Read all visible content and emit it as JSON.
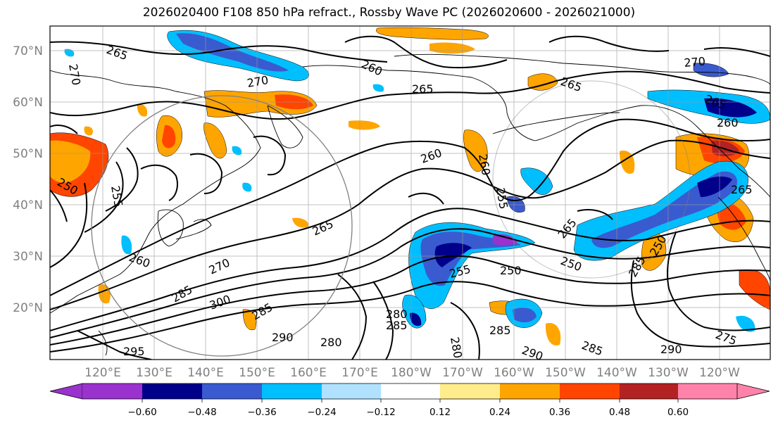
{
  "title": "2026020400 F108 850 hPa refract., Rossby Wave PC (2026020600 - 2026021000)",
  "lat_labels": [
    "70°N",
    "60°N",
    "50°N",
    "40°N",
    "30°N",
    "20°N"
  ],
  "lon_labels": [
    "120°E",
    "130°E",
    "140°E",
    "150°E",
    "160°E",
    "170°E",
    "180°W",
    "170°W",
    "160°W",
    "150°W",
    "140°W",
    "130°W",
    "120°W"
  ],
  "colorbar": {
    "tick_labels": [
      "−0.60",
      "−0.48",
      "−0.36",
      "−0.24",
      "−0.12",
      "0.12",
      "0.24",
      "0.36",
      "0.48",
      "0.60"
    ],
    "colors": [
      "#9a32cd",
      "#00008b",
      "#3a5bcf",
      "#00bfff",
      "#b0e2ff",
      "#ffffff",
      "#ffec8b",
      "#ffa500",
      "#ff4500",
      "#b22222",
      "#ff82ab"
    ]
  },
  "contour_labels": [
    "270",
    "265",
    "260",
    "265",
    "270",
    "265",
    "270",
    "265",
    "260",
    "250",
    "255",
    "260",
    "265",
    "270",
    "285",
    "300",
    "285",
    "290",
    "280",
    "295",
    "260",
    "255",
    "265",
    "250",
    "255",
    "250",
    "260",
    "280",
    "285",
    "285",
    "290",
    "285",
    "290",
    "250",
    "265",
    "285",
    "275",
    "280"
  ]
}
